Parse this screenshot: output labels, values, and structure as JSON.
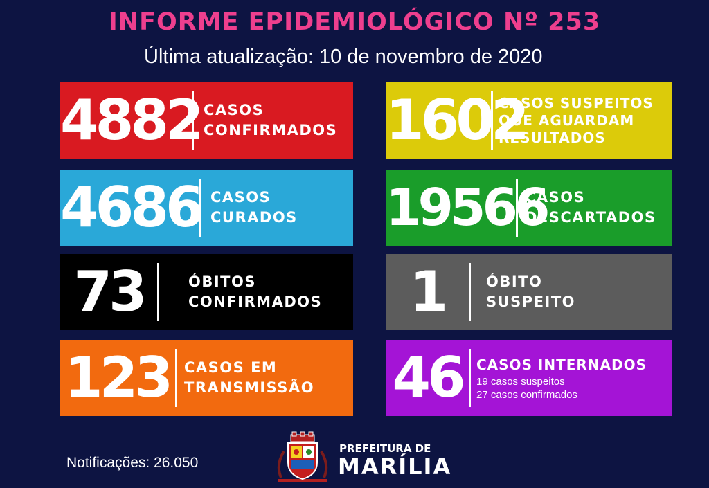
{
  "header": {
    "title": "INFORME EPIDEMIOLÓGICO Nº 253",
    "subtitle": "Última atualização: 10 de novembro de 2020"
  },
  "cards": {
    "confirmed": {
      "value": "4882",
      "line1": "CASOS",
      "line2": "CONFIRMADOS",
      "color": "#d91a21"
    },
    "suspected": {
      "value": "1602",
      "line1": "CASOS SUSPEITOS",
      "line2": "QUE AGUARDAM",
      "line3": "RESULTADOS",
      "color": "#dccb0a"
    },
    "cured": {
      "value": "4686",
      "line1": "CASOS",
      "line2": "CURADOS",
      "color": "#2aa8d8"
    },
    "discarded": {
      "value": "19566",
      "line1": "CASOS",
      "line2": "DESCARTADOS",
      "color": "#1a9d2a"
    },
    "deaths": {
      "value": "73",
      "line1": "ÓBITOS",
      "line2": "CONFIRMADOS",
      "color": "#000000"
    },
    "suspected_death": {
      "value": "1",
      "line1": "ÓBITO",
      "line2": "SUSPEITO",
      "color": "#5c5c5c"
    },
    "transmission": {
      "value": "123",
      "line1": "CASOS EM",
      "line2": "TRANSMISSÃO",
      "color": "#f26a0f"
    },
    "hospitalized": {
      "value": "46",
      "line1": "CASOS INTERNADOS",
      "sub1": "19 casos suspeitos",
      "sub2": "27 casos confirmados",
      "color": "#a414d6"
    }
  },
  "footer": {
    "notifications": "Notificações: 26.050",
    "brand_top": "PREFEITURA DE",
    "brand_main": "MARÍLIA",
    "logo_icon": "city-crest-icon"
  }
}
